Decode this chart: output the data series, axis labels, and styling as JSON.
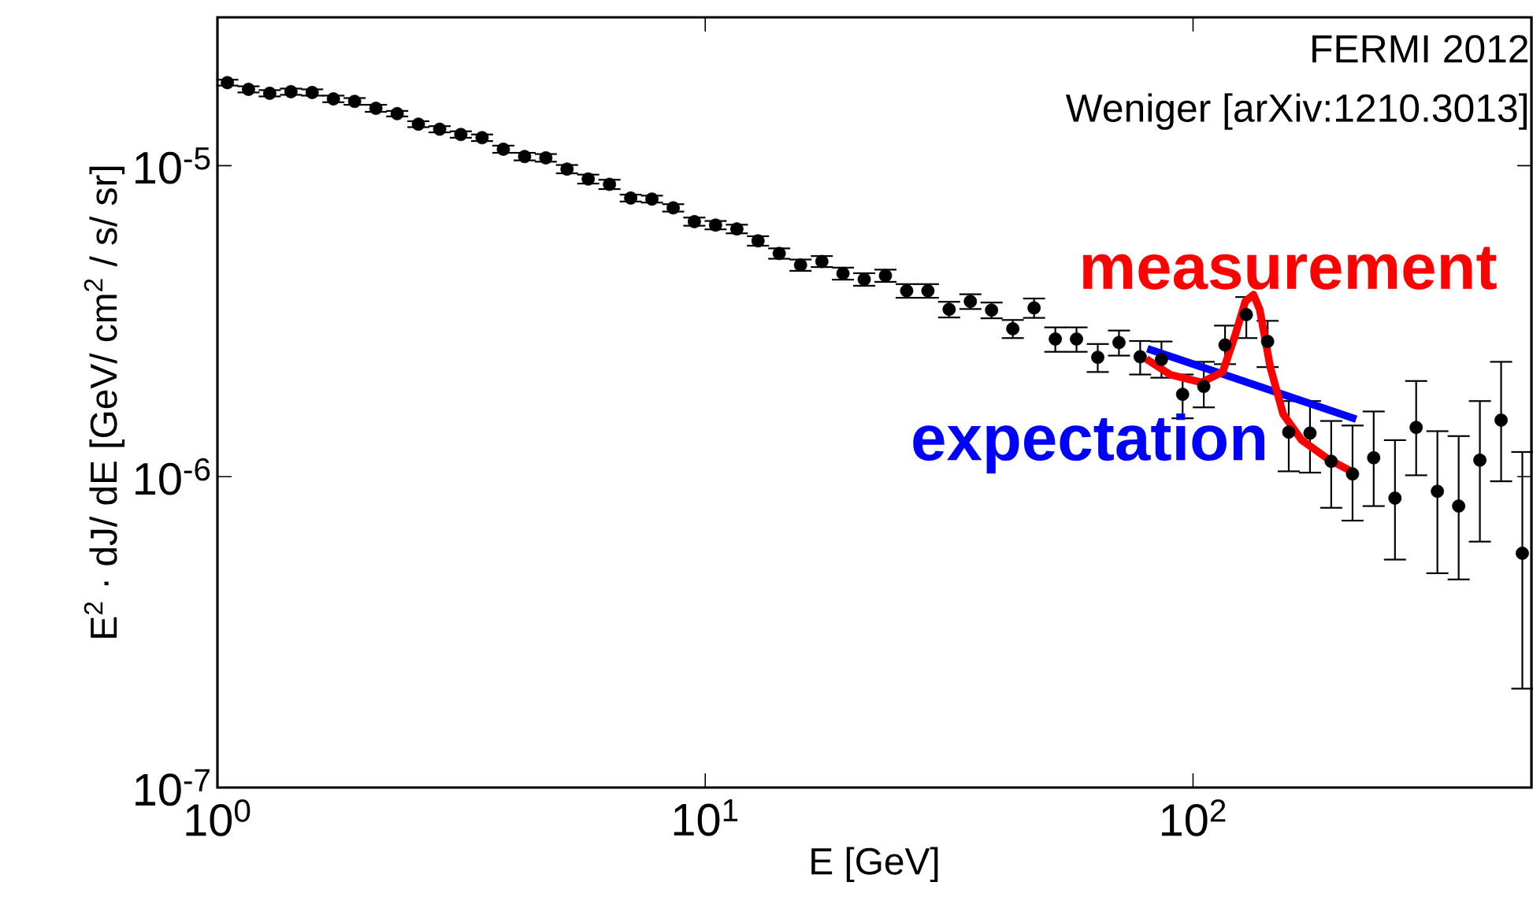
{
  "chart_data": {
    "type": "scatter",
    "xlabel": "E [GeV]",
    "ylabel": "E$^{2}$ · dJ/ dE [GeV/ cm$^{2}$ / s/ sr]",
    "annotations": [
      "FERMI 2012",
      "Weniger [arXiv:1210.3013]"
    ],
    "log": "xy",
    "xlim": [
      1,
      494
    ],
    "ylim": [
      1e-07,
      3e-05
    ],
    "xticks": [
      {
        "value": 1,
        "label": "10$^{0}$"
      },
      {
        "value": 10,
        "label": "10$^{1}$"
      },
      {
        "value": 100,
        "label": "10$^{2}$"
      }
    ],
    "yticks": [
      {
        "value": 1e-07,
        "label": "10$^{-7}$"
      },
      {
        "value": 1e-06,
        "label": "10$^{-6}$"
      },
      {
        "value": 1e-05,
        "label": "10$^{-5}$"
      }
    ],
    "grid": false,
    "series": [
      {
        "color": "#000000",
        "marker": "circle",
        "x": [
          1.048,
          1.158,
          1.28,
          1.415,
          1.564,
          1.729,
          1.911,
          2.113,
          2.336,
          2.582,
          2.855,
          3.155,
          3.488,
          3.856,
          4.263,
          4.712,
          5.208,
          5.756,
          6.364,
          7.035,
          7.777,
          8.597,
          9.5,
          10.5,
          11.61,
          12.83,
          14.18,
          15.68,
          17.34,
          19.16,
          21.18,
          23.41,
          25.88,
          28.61,
          31.62,
          34.96,
          38.64,
          42.71,
          47.22,
          52.2,
          57.7,
          63.78,
          70.5,
          77.94,
          86.15,
          95.2,
          105.2,
          116.3,
          128.6,
          142.2,
          157.1,
          173.7,
          192.0,
          212.3,
          234.6,
          259.4,
          286.7,
          316.9,
          350.4,
          387.3,
          428.1,
          473.2
        ],
        "values": [
          1.85e-05,
          1.76e-05,
          1.71e-05,
          1.73e-05,
          1.72e-05,
          1.64e-05,
          1.61e-05,
          1.53e-05,
          1.47e-05,
          1.36e-05,
          1.31e-05,
          1.26e-05,
          1.23e-05,
          1.13e-05,
          1.07e-05,
          1.06e-05,
          9.75e-06,
          9.06e-06,
          8.71e-06,
          7.87e-06,
          7.81e-06,
          7.32e-06,
          6.61e-06,
          6.44e-06,
          6.26e-06,
          5.73e-06,
          5.22e-06,
          4.79e-06,
          4.92e-06,
          4.5e-06,
          4.31e-06,
          4.43e-06,
          3.96e-06,
          3.96e-06,
          3.45e-06,
          3.66e-06,
          3.43e-06,
          2.99e-06,
          3.49e-06,
          2.77e-06,
          2.77e-06,
          2.42e-06,
          2.7e-06,
          2.43e-06,
          2.38e-06,
          1.84e-06,
          1.95e-06,
          2.65e-06,
          3.32e-06,
          2.72e-06,
          1.39e-06,
          1.38e-06,
          1.12e-06,
          1.02e-06,
          1.15e-06,
          8.53e-07,
          1.44e-06,
          8.97e-07,
          8.04e-07,
          1.13e-06,
          1.52e-06,
          5.67e-07
        ],
        "errors": [
          4e-07,
          4e-07,
          4e-07,
          4e-07,
          4e-07,
          4e-07,
          4e-07,
          4e-07,
          3e-07,
          3e-07,
          3e-07,
          3e-07,
          3e-07,
          3e-07,
          3e-07,
          3e-07,
          3e-07,
          3e-07,
          3e-07,
          2e-07,
          2e-07,
          2e-07,
          2e-07,
          2e-07,
          2e-07,
          2e-07,
          2e-07,
          2e-07,
          2e-07,
          2e-07,
          2e-07,
          2e-07,
          2e-07,
          2e-07,
          2e-07,
          2e-07,
          2e-07,
          2e-07,
          2.5e-07,
          2.5e-07,
          2.5e-07,
          2.5e-07,
          2.5e-07,
          3e-07,
          [
            2.08e-06,
            2.72e-06
          ],
          [
            1.54e-06,
            2.13e-06
          ],
          [
            1.67e-06,
            2.34e-06
          ],
          [
            2.3e-06,
            3.06e-06
          ],
          [
            2.79e-06,
            3.78e-06
          ],
          [
            2.25e-06,
            3.17e-06
          ],
          [
            1.04e-06,
            1.75e-06
          ],
          [
            1.03e-06,
            1.75e-06
          ],
          [
            7.94e-07,
            1.51e-06
          ],
          [
            7.22e-07,
            1.46e-06
          ],
          [
            8.04e-07,
            1.62e-06
          ],
          [
            5.41e-07,
            1.31e-06
          ],
          [
            1.01e-06,
            2.03e-06
          ],
          [
            4.89e-07,
            1.4e-06
          ],
          [
            4.67e-07,
            1.35e-06
          ],
          [
            6.18e-07,
            1.75e-06
          ],
          [
            9.66e-07,
            2.34e-06
          ],
          [
            2.08e-07,
            1.2e-06
          ]
        ]
      },
      {
        "type": "line",
        "name": "expectation",
        "color": "#0000ff",
        "marker": "none",
        "x": [
          80.6,
          216
        ],
        "values": [
          2.58e-06,
          1.53e-06
        ]
      },
      {
        "type": "line",
        "name": "measurement",
        "color": "#ff0000",
        "marker": "none",
        "x": [
          80.2,
          89.7,
          104,
          115,
          122,
          128,
          133,
          137,
          144,
          153,
          167,
          189,
          216
        ],
        "values": [
          2.39e-06,
          2.13e-06,
          2.01e-06,
          2.17e-06,
          2.85e-06,
          3.66e-06,
          3.85e-06,
          3.45e-06,
          2.25e-06,
          1.59e-06,
          1.31e-06,
          1.14e-06,
          1.02e-06
        ]
      }
    ]
  }
}
